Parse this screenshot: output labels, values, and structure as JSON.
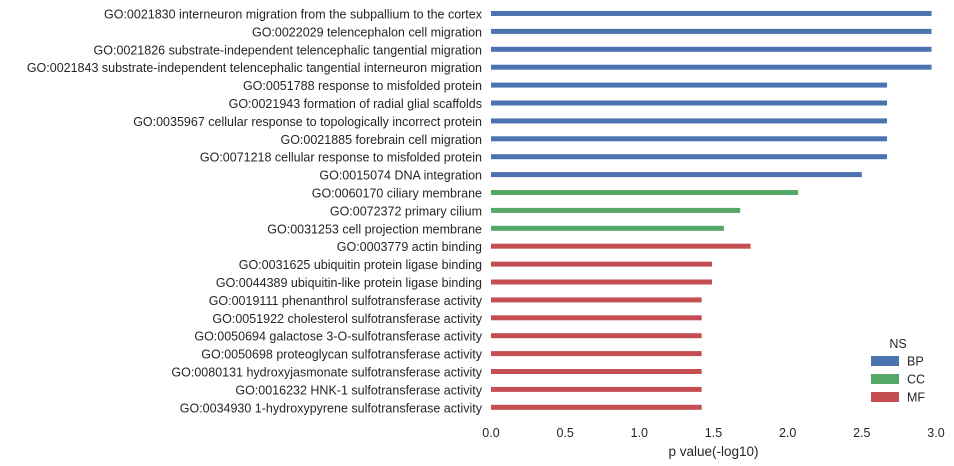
{
  "chart_data": {
    "type": "bar",
    "orientation": "horizontal",
    "title": "",
    "xlabel": "p value(-log10)",
    "ylabel": "",
    "xlim": [
      0,
      3.0
    ],
    "xticks": [
      "0.0",
      "0.5",
      "1.0",
      "1.5",
      "2.0",
      "2.5",
      "3.0"
    ],
    "grid": false,
    "legend": {
      "title": "NS",
      "position": "bottom-right",
      "entries": [
        {
          "name": "BP",
          "color": "#4c72b0"
        },
        {
          "name": "CC",
          "color": "#55a868"
        },
        {
          "name": "MF",
          "color": "#c44e52"
        }
      ]
    },
    "categories": [
      "GO:0021830 interneuron migration from the subpallium to the cortex",
      "GO:0022029 telencephalon cell migration",
      "GO:0021826 substrate-independent telencephalic tangential migration",
      "GO:0021843 substrate-independent telencephalic tangential interneuron migration",
      "GO:0051788 response to misfolded protein",
      "GO:0021943 formation of radial glial scaffolds",
      "GO:0035967 cellular response to topologically incorrect protein",
      "GO:0021885 forebrain cell migration",
      "GO:0071218 cellular response to misfolded protein",
      "GO:0015074 DNA integration",
      "GO:0060170 ciliary membrane",
      "GO:0072372 primary cilium",
      "GO:0031253 cell projection membrane",
      "GO:0003779 actin binding",
      "GO:0031625 ubiquitin protein ligase binding",
      "GO:0044389 ubiquitin-like protein ligase binding",
      "GO:0019111 phenanthrol sulfotransferase activity",
      "GO:0051922 cholesterol sulfotransferase activity",
      "GO:0050694 galactose 3-O-sulfotransferase activity",
      "GO:0050698 proteoglycan sulfotransferase activity",
      "GO:0080131 hydroxyjasmonate sulfotransferase activity",
      "GO:0016232 HNK-1 sulfotransferase activity",
      "GO:0034930 1-hydroxypyrene sulfotransferase activity"
    ],
    "values": [
      2.97,
      2.97,
      2.97,
      2.97,
      2.67,
      2.67,
      2.67,
      2.67,
      2.67,
      2.5,
      2.07,
      1.68,
      1.57,
      1.75,
      1.49,
      1.49,
      1.42,
      1.42,
      1.42,
      1.42,
      1.42,
      1.42,
      1.42
    ],
    "groups": [
      "BP",
      "BP",
      "BP",
      "BP",
      "BP",
      "BP",
      "BP",
      "BP",
      "BP",
      "BP",
      "CC",
      "CC",
      "CC",
      "MF",
      "MF",
      "MF",
      "MF",
      "MF",
      "MF",
      "MF",
      "MF",
      "MF",
      "MF"
    ]
  }
}
